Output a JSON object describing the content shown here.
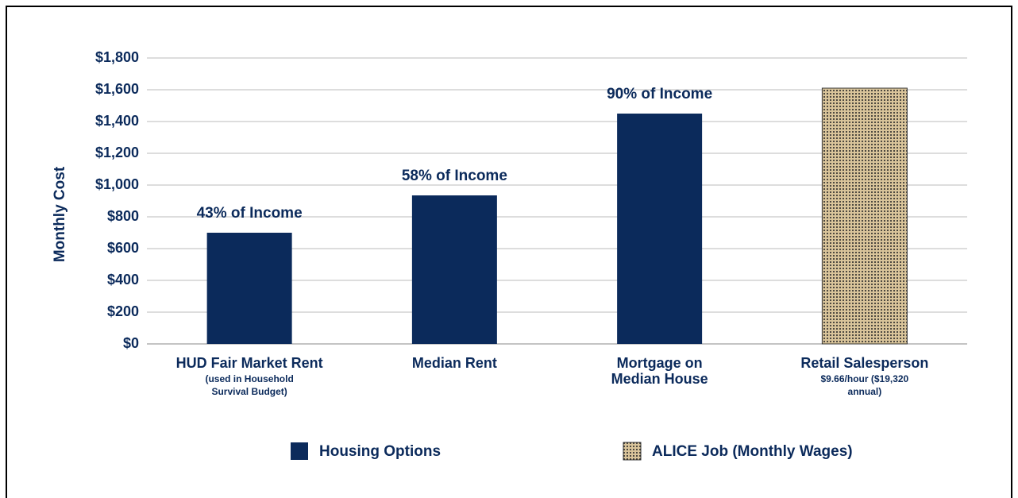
{
  "chart_data": {
    "type": "bar",
    "y_label": "Monthly Cost",
    "categories": [
      "HUD Fair Market Rent",
      "Median Rent",
      "Mortgage on Median House",
      "Retail Salesperson"
    ],
    "category_sublabels": [
      "(used in Household Survival Budget)",
      null,
      null,
      "$9.66/hour ($19,320 annual)"
    ],
    "annotations": [
      "43% of Income",
      "58% of Income",
      "90% of Income",
      null
    ],
    "series": [
      {
        "name": "Housing Options",
        "color": "#0b2a5b",
        "values": [
          700,
          935,
          1450,
          null
        ]
      },
      {
        "name": "ALICE Job (Monthly Wages)",
        "color": "#d9c49a",
        "pattern": "dots",
        "values": [
          null,
          null,
          null,
          1610
        ]
      }
    ],
    "ylim": [
      0,
      1800
    ],
    "yticks": [
      {
        "value": 0,
        "label": "$0"
      },
      {
        "value": 200,
        "label": "$200"
      },
      {
        "value": 400,
        "label": "$400"
      },
      {
        "value": 600,
        "label": "$600"
      },
      {
        "value": 800,
        "label": "$800"
      },
      {
        "value": 1000,
        "label": "$1,000"
      },
      {
        "value": 1200,
        "label": "$1,200"
      },
      {
        "value": 1400,
        "label": "$1,400"
      },
      {
        "value": 1600,
        "label": "$1,600"
      },
      {
        "value": 1800,
        "label": "$1,800"
      }
    ],
    "grid": true
  }
}
